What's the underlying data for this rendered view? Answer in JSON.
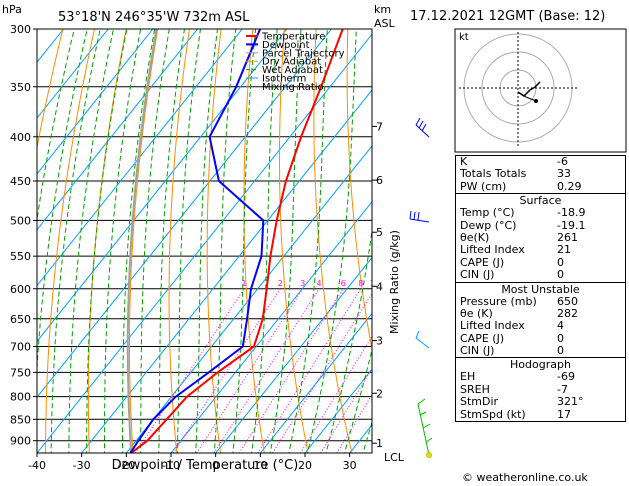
{
  "header": {
    "hpa_label": "hPa",
    "location": "53°18'N  246°35'W  732m  ASL",
    "km_label": "km",
    "asl_label": "ASL",
    "datetime": "17.12.2021  12GMT  (Base: 12)"
  },
  "chart_data": {
    "type": "skew-t log-p",
    "title": "53°18'N  246°35'W  732m  ASL",
    "xlabel": "Dewpoint / Temperature (°C)",
    "ylabel_right": "Mixing Ratio (g/kg)",
    "temp_range": [
      -40,
      35
    ],
    "temp_ticks": [
      "-40",
      "-30",
      "-20",
      "-10",
      "0",
      "10",
      "20",
      "30"
    ],
    "pressure_range": [
      300,
      930
    ],
    "pressure_ticks": [
      "300",
      "350",
      "400",
      "450",
      "500",
      "550",
      "600",
      "650",
      "700",
      "750",
      "800",
      "850",
      "900"
    ],
    "km_ticks": [
      {
        "label": "7",
        "p": 389
      },
      {
        "label": "6",
        "p": 449
      },
      {
        "label": "5",
        "p": 516
      },
      {
        "label": "4",
        "p": 596
      },
      {
        "label": "3",
        "p": 689
      },
      {
        "label": "2",
        "p": 793
      },
      {
        "label": "1",
        "p": 906
      }
    ],
    "lcl_label": "LCL",
    "mixing_ratio_labels": [
      "1",
      "2",
      "3",
      "4",
      "6",
      "8",
      "10",
      "15",
      "20",
      "25"
    ],
    "legend": [
      "Temperature",
      "Dewpoint",
      "Parcel Trajectory",
      "Dry Adiabat",
      "Wet Adiabat",
      "Isotherm",
      "Mixing Ratio"
    ],
    "temperature": [
      {
        "p": 930,
        "t": -18.9
      },
      {
        "p": 900,
        "t": -17.5
      },
      {
        "p": 850,
        "t": -17
      },
      {
        "p": 800,
        "t": -16.5
      },
      {
        "p": 750,
        "t": -14
      },
      {
        "p": 700,
        "t": -10.5
      },
      {
        "p": 650,
        "t": -13.5
      },
      {
        "p": 600,
        "t": -18
      },
      {
        "p": 550,
        "t": -23
      },
      {
        "p": 500,
        "t": -28
      },
      {
        "p": 450,
        "t": -33
      },
      {
        "p": 400,
        "t": -37.5
      },
      {
        "p": 350,
        "t": -42
      },
      {
        "p": 300,
        "t": -47.5
      }
    ],
    "dewpoint": [
      {
        "p": 930,
        "t": -19.1
      },
      {
        "p": 900,
        "t": -19.5
      },
      {
        "p": 850,
        "t": -20
      },
      {
        "p": 800,
        "t": -19
      },
      {
        "p": 750,
        "t": -16
      },
      {
        "p": 700,
        "t": -13
      },
      {
        "p": 650,
        "t": -17
      },
      {
        "p": 600,
        "t": -21.5
      },
      {
        "p": 550,
        "t": -25
      },
      {
        "p": 500,
        "t": -31
      },
      {
        "p": 450,
        "t": -48
      },
      {
        "p": 400,
        "t": -58
      },
      {
        "p": 350,
        "t": -61
      },
      {
        "p": 300,
        "t": -66
      }
    ]
  },
  "hodograph": {
    "label": "kt"
  },
  "indices": {
    "rows": [
      {
        "label": "K",
        "value": "-6"
      },
      {
        "label": "Totals Totals",
        "value": "33"
      },
      {
        "label": "PW (cm)",
        "value": "0.29"
      }
    ]
  },
  "surface": {
    "title": "Surface",
    "rows": [
      {
        "label": "Temp (°C)",
        "value": "-18.9"
      },
      {
        "label": "Dewp (°C)",
        "value": "-19.1"
      },
      {
        "label": "θe(K)",
        "value": "261"
      },
      {
        "label": "Lifted Index",
        "value": "21"
      },
      {
        "label": "CAPE (J)",
        "value": "0"
      },
      {
        "label": "CIN (J)",
        "value": "0"
      }
    ]
  },
  "most_unstable": {
    "title": "Most Unstable",
    "rows": [
      {
        "label": "Pressure (mb)",
        "value": "650"
      },
      {
        "label": "θe (K)",
        "value": "282"
      },
      {
        "label": "Lifted Index",
        "value": "4"
      },
      {
        "label": "CAPE (J)",
        "value": "0"
      },
      {
        "label": "CIN (J)",
        "value": "0"
      }
    ]
  },
  "hodograph_table": {
    "title": "Hodograph",
    "rows": [
      {
        "label": "EH",
        "value": "-69"
      },
      {
        "label": "SREH",
        "value": "-7"
      },
      {
        "label": "StmDir",
        "value": "321°"
      },
      {
        "label": "StmSpd (kt)",
        "value": "17"
      }
    ]
  },
  "copyright": "© weatheronline.co.uk",
  "colors": {
    "temperature": "#ff0000",
    "dewpoint": "#0000ff",
    "parcel": "#a0a0a0",
    "dry_adiabat": "#ff8c00",
    "wet_adiabat": "#00a000",
    "isotherm": "#00a0ff",
    "mixing_ratio": "#ff00ff"
  }
}
